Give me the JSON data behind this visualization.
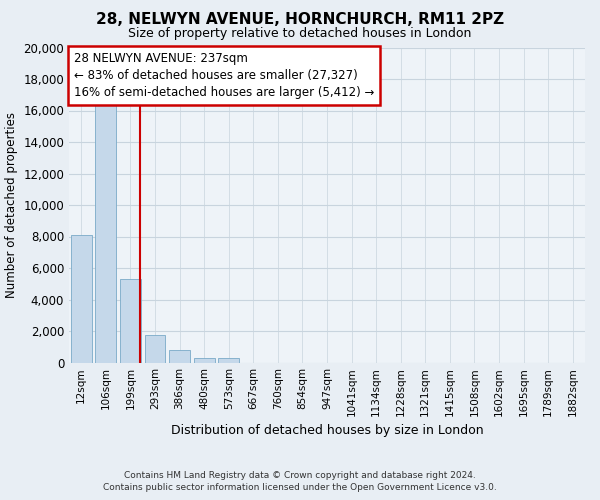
{
  "title": "28, NELWYN AVENUE, HORNCHURCH, RM11 2PZ",
  "subtitle": "Size of property relative to detached houses in London",
  "xlabel": "Distribution of detached houses by size in London",
  "ylabel": "Number of detached properties",
  "bar_labels": [
    "12sqm",
    "106sqm",
    "199sqm",
    "293sqm",
    "386sqm",
    "480sqm",
    "573sqm",
    "667sqm",
    "760sqm",
    "854sqm",
    "947sqm",
    "1041sqm",
    "1134sqm",
    "1228sqm",
    "1321sqm",
    "1415sqm",
    "1508sqm",
    "1602sqm",
    "1695sqm",
    "1789sqm",
    "1882sqm"
  ],
  "bar_values": [
    8100,
    16500,
    5300,
    1750,
    800,
    280,
    280,
    0,
    0,
    0,
    0,
    0,
    0,
    0,
    0,
    0,
    0,
    0,
    0,
    0,
    0
  ],
  "bar_color": "#c5d8ea",
  "bar_edge_color": "#7aaac8",
  "vline_color": "#cc0000",
  "annotation_title": "28 NELWYN AVENUE: 237sqm",
  "annotation_line2": "← 83% of detached houses are smaller (27,327)",
  "annotation_line3": "16% of semi-detached houses are larger (5,412) →",
  "ylim": [
    0,
    20000
  ],
  "yticks": [
    0,
    2000,
    4000,
    6000,
    8000,
    10000,
    12000,
    14000,
    16000,
    18000,
    20000
  ],
  "footer_line1": "Contains HM Land Registry data © Crown copyright and database right 2024.",
  "footer_line2": "Contains public sector information licensed under the Open Government Licence v3.0.",
  "bg_color": "#e8eef4",
  "plot_bg_color": "#eef3f8",
  "grid_color": "#c8d4de"
}
